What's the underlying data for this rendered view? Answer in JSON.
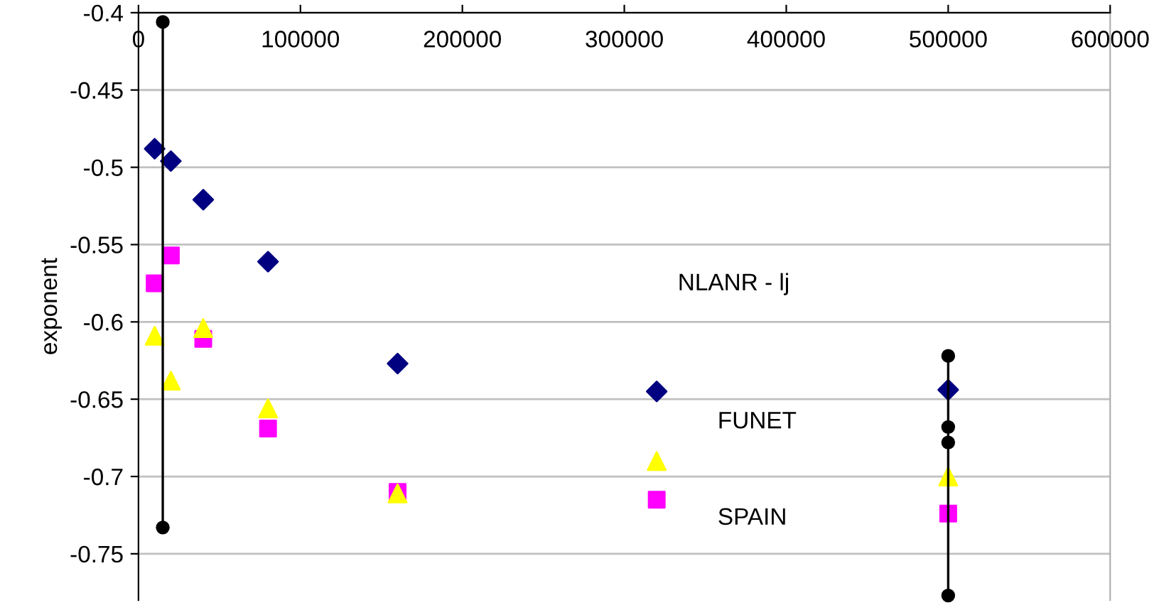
{
  "chart_data": {
    "type": "scatter",
    "ylabel": "exponent",
    "xlim": [
      0,
      600000
    ],
    "xticks": [
      0,
      100000,
      200000,
      300000,
      400000,
      500000,
      600000
    ],
    "ylim": [
      -0.78,
      -0.4
    ],
    "yticks": [
      -0.4,
      -0.45,
      -0.5,
      -0.55,
      -0.6,
      -0.65,
      -0.7,
      -0.75
    ],
    "grid": "y",
    "legend": false,
    "annotations": [
      "NLANR - lj",
      "FUNET",
      "SPAIN"
    ],
    "series": [
      {
        "color": "#000080",
        "marker": "diamond",
        "x": [
          10000,
          20000,
          40000,
          80000,
          160000,
          320000,
          500000
        ],
        "values": [
          -0.488,
          -0.496,
          -0.521,
          -0.561,
          -0.627,
          -0.645,
          -0.644
        ]
      },
      {
        "color": "#ffff00",
        "marker": "triangle",
        "x": [
          10000,
          20000,
          40000,
          80000,
          160000,
          320000,
          500000
        ],
        "values": [
          -0.609,
          -0.638,
          -0.604,
          -0.656,
          -0.711,
          -0.69,
          -0.7
        ]
      },
      {
        "color": "#ff00ff",
        "marker": "square",
        "x": [
          10000,
          20000,
          40000,
          80000,
          160000,
          320000,
          500000
        ],
        "values": [
          -0.575,
          -0.557,
          -0.611,
          -0.669,
          -0.71,
          -0.715,
          -0.724
        ]
      },
      {
        "type": "line",
        "color": "#000000",
        "marker": "circle",
        "line_style": "solid",
        "x": [
          15000,
          15000
        ],
        "values": [
          -0.406,
          -0.733
        ]
      },
      {
        "type": "line",
        "color": "#000000",
        "marker": "circle",
        "line_style": "solid",
        "x": [
          500000,
          500000,
          500000,
          500000
        ],
        "values": [
          -0.622,
          -0.668,
          -0.678,
          -0.777
        ]
      }
    ]
  }
}
